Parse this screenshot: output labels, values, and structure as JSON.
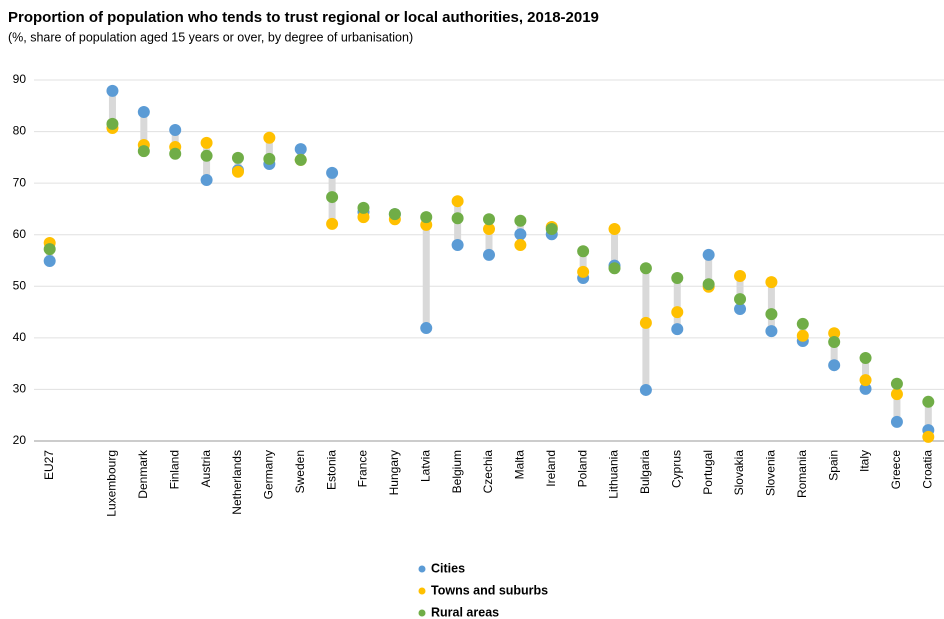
{
  "chart_data": {
    "type": "dotrange",
    "title": "Proportion of population who tends to trust regional or local authorities, 2018-2019",
    "subtitle": "(%, share of population aged 15 years or over, by degree of urbanisation)",
    "categories": [
      "EU27",
      null,
      "Luxembourg",
      "Denmark",
      "Finland",
      "Austria",
      "Netherlands",
      "Germany",
      "Sweden",
      "Estonia",
      "France",
      "Hungary",
      "Latvia",
      "Belgium",
      "Czechia",
      "Malta",
      "Ireland",
      "Poland",
      "Lithuania",
      "Bulgaria",
      "Cyprus",
      "Portugal",
      "Slovakia",
      "Slovenia",
      "Romania",
      "Spain",
      "Italy",
      "Greece",
      "Croatia"
    ],
    "series": [
      {
        "name": "Cities",
        "color": "#5b9bd5",
        "values": [
          54.9,
          null,
          87.9,
          83.8,
          80.3,
          70.6,
          72.5,
          73.7,
          76.6,
          72.0,
          64.4,
          64.0,
          41.9,
          58.0,
          56.1,
          60.1,
          60.1,
          51.6,
          54.0,
          29.9,
          41.7,
          56.1,
          45.6,
          41.3,
          39.4,
          34.7,
          30.1,
          23.7,
          22.1
        ]
      },
      {
        "name": "Towns and suburbs",
        "color": "#ffc000",
        "values": [
          58.4,
          null,
          80.7,
          77.4,
          77.0,
          77.8,
          72.2,
          78.8,
          74.5,
          62.1,
          63.4,
          63.0,
          61.9,
          66.5,
          61.1,
          58.0,
          61.5,
          52.8,
          61.1,
          42.9,
          45.0,
          49.9,
          52.0,
          50.8,
          40.4,
          40.9,
          31.8,
          29.1,
          20.8
        ]
      },
      {
        "name": "Rural areas",
        "color": "#70ad47",
        "values": [
          57.2,
          null,
          81.5,
          76.2,
          75.7,
          75.3,
          74.9,
          74.7,
          74.5,
          67.3,
          65.2,
          64.0,
          63.4,
          63.2,
          63.0,
          62.7,
          61.1,
          56.8,
          53.5,
          53.5,
          51.6,
          50.4,
          47.5,
          44.6,
          42.7,
          39.2,
          36.1,
          31.1,
          27.6
        ]
      }
    ],
    "range_color": "#d9d9d9",
    "ylim": [
      20,
      90
    ],
    "yticks": [
      20,
      30,
      40,
      50,
      60,
      70,
      80,
      90
    ],
    "grid": true
  }
}
